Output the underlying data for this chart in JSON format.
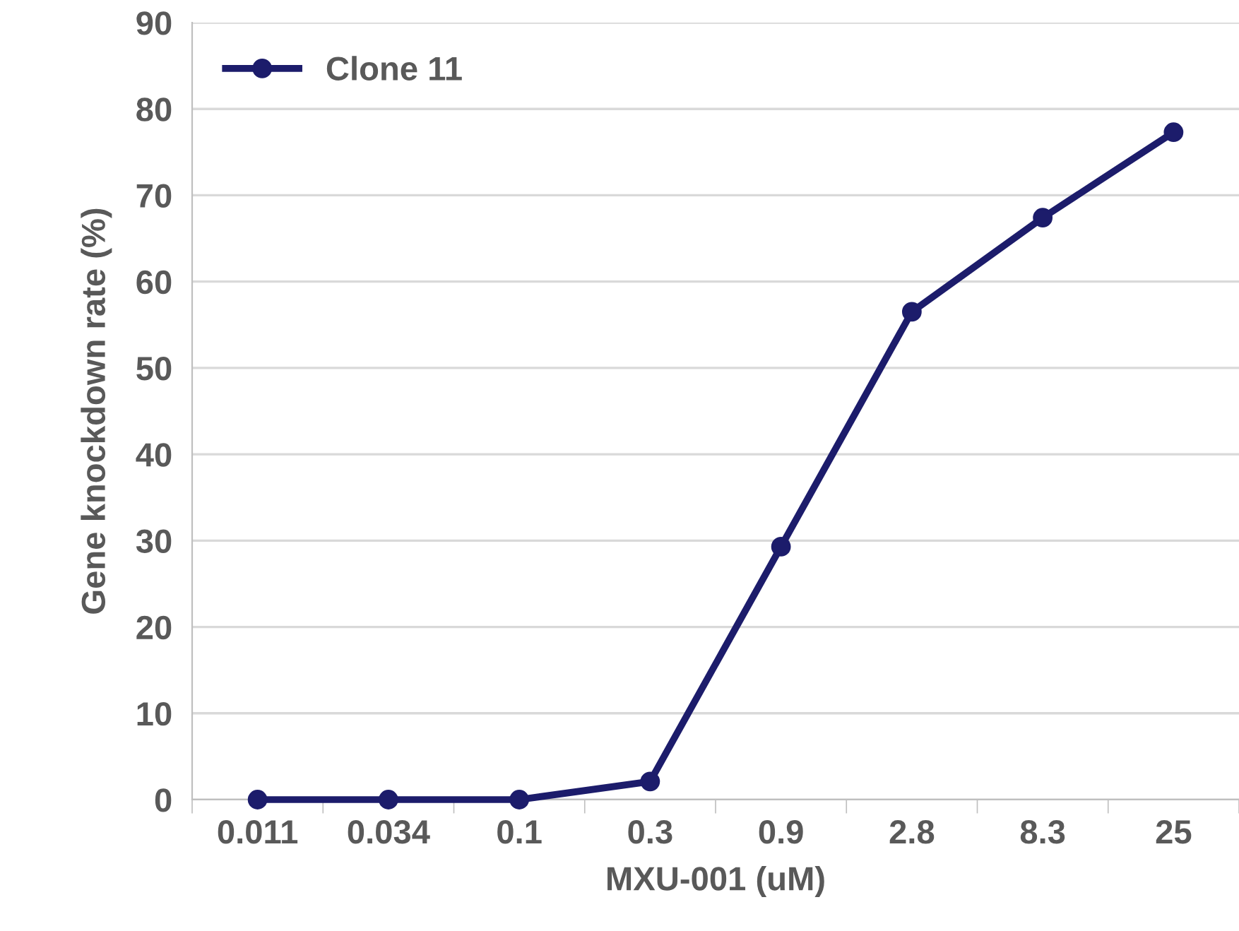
{
  "chart_data": {
    "type": "line",
    "xlabel": "MXU-001 (uM)",
    "ylabel": "Gene knockdown rate (%)",
    "categories": [
      "0.011",
      "0.034",
      "0.1",
      "0.3",
      "0.9",
      "2.8",
      "8.3",
      "25"
    ],
    "series": [
      {
        "name": "Clone 11",
        "color": "#1c1c6b",
        "values": [
          0,
          0,
          0,
          2.1,
          29.3,
          56.5,
          67.4,
          77.3
        ]
      }
    ],
    "ylim": [
      0,
      90
    ],
    "yticks": [
      0,
      10,
      20,
      30,
      40,
      50,
      60,
      70,
      80,
      90
    ],
    "grid": "y",
    "legend": "top left",
    "marker": "circle",
    "line_style": "solid"
  }
}
